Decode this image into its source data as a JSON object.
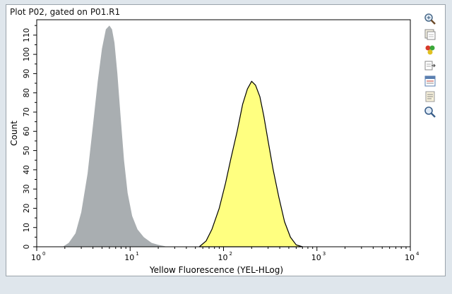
{
  "plot": {
    "title": "Plot P02, gated on P01.R1"
  },
  "toolbar": {
    "tools": [
      {
        "icon": "zoom-in-icon"
      },
      {
        "icon": "copy-plot-icon"
      },
      {
        "icon": "color-settings-icon"
      },
      {
        "icon": "export-icon"
      },
      {
        "icon": "statistics-icon"
      },
      {
        "icon": "properties-icon"
      },
      {
        "icon": "magnifier-icon"
      }
    ]
  },
  "chart_data": {
    "type": "area",
    "title": "Plot P02, gated on P01.R1",
    "xlabel": "Yellow Fluorescence (YEL-HLog)",
    "ylabel": "Count",
    "x_scale": "log",
    "xlim": [
      1,
      10000
    ],
    "ylim": [
      0,
      118
    ],
    "x_ticks": [
      {
        "value": 1,
        "base": "10",
        "exp": "0"
      },
      {
        "value": 10,
        "base": "10",
        "exp": "1"
      },
      {
        "value": 100,
        "base": "10",
        "exp": "2"
      },
      {
        "value": 1000,
        "base": "10",
        "exp": "3"
      },
      {
        "value": 10000,
        "base": "10",
        "exp": "4"
      }
    ],
    "y_ticks": [
      0,
      10,
      20,
      30,
      40,
      50,
      60,
      70,
      80,
      90,
      100,
      110
    ],
    "grid": false,
    "series": [
      {
        "color": "#a9aeb1",
        "outline": "none",
        "x": [
          1.9,
          2.2,
          2.6,
          3.0,
          3.5,
          4.0,
          4.5,
          5.0,
          5.5,
          6.0,
          6.4,
          6.8,
          7.3,
          7.9,
          8.6,
          9.4,
          10.5,
          12,
          14,
          17,
          20,
          25
        ],
        "y": [
          0,
          2,
          7,
          18,
          38,
          63,
          86,
          103,
          113,
          115,
          113,
          106,
          90,
          68,
          45,
          28,
          16,
          9,
          5,
          2,
          1,
          0
        ]
      },
      {
        "color": "#ffff80",
        "outline": "#000000",
        "x": [
          55,
          65,
          75,
          90,
          105,
          120,
          140,
          160,
          180,
          200,
          220,
          245,
          270,
          300,
          340,
          390,
          450,
          520,
          600,
          700
        ],
        "y": [
          0,
          3,
          9,
          20,
          33,
          46,
          60,
          74,
          82,
          86,
          84,
          78,
          68,
          55,
          40,
          26,
          13,
          5,
          1,
          0
        ]
      }
    ]
  }
}
